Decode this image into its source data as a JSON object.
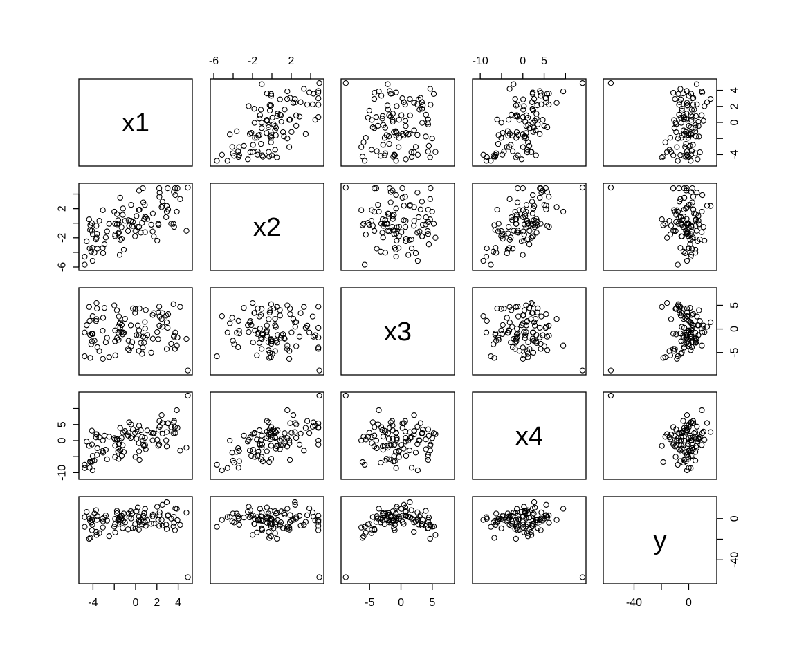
{
  "chart_data": {
    "type": "scatter",
    "kind": "scatterplot-matrix",
    "variables": [
      "x1",
      "x2",
      "x3",
      "x4",
      "y"
    ],
    "ranges": {
      "x1": [
        -5,
        5
      ],
      "x2": [
        -6,
        5
      ],
      "x3": [
        -9,
        8
      ],
      "x4": [
        -11,
        14
      ],
      "y": [
        -60,
        18
      ]
    },
    "ticks": {
      "x1": [
        -4,
        0,
        2,
        4
      ],
      "x2": [
        -6,
        -2,
        2
      ],
      "x3": [
        -5,
        0,
        5
      ],
      "x4": [
        -10,
        0,
        5
      ],
      "y": [
        -40,
        0
      ]
    },
    "minor_ticks": {
      "x1": [
        -2
      ],
      "x2": [
        -4,
        0,
        4
      ],
      "x3": [],
      "x4": [
        -5,
        10
      ],
      "y": [
        -20
      ]
    },
    "grid": false,
    "legend": "none",
    "n_points": 100,
    "approx_correlations": {
      "x1-x2": 0.55,
      "x1-x3": 0.05,
      "x1-x4": 0.5,
      "x1-y": 0.1,
      "x2-x3": 0.02,
      "x2-x4": 0.35,
      "x2-y": 0.05,
      "x3-x4": -0.05,
      "x3-y": 0.3,
      "x4-y": 0.25
    },
    "outlier": {
      "x1": 4.9,
      "x2": 4.9,
      "x3": -8.8,
      "x4": 14,
      "y": -57
    }
  }
}
